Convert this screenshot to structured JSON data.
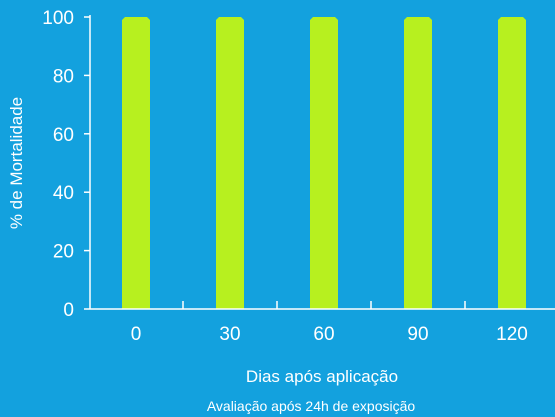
{
  "colors": {
    "background": "#13a1de",
    "bar": "#b7f01f",
    "text": "#ffffff",
    "axis": "#ffffff"
  },
  "chart_data": {
    "type": "bar",
    "categories": [
      "0",
      "30",
      "60",
      "90",
      "120"
    ],
    "values": [
      100,
      100,
      100,
      100,
      100
    ],
    "xlabel": "Dias após aplicação",
    "ylabel": "% de Mortalidade",
    "note": "Avaliação após 24h de exposição",
    "ylim": [
      0,
      100
    ],
    "yticks": [
      0,
      20,
      40,
      60,
      80,
      100
    ],
    "grid": false,
    "legend": "none"
  }
}
